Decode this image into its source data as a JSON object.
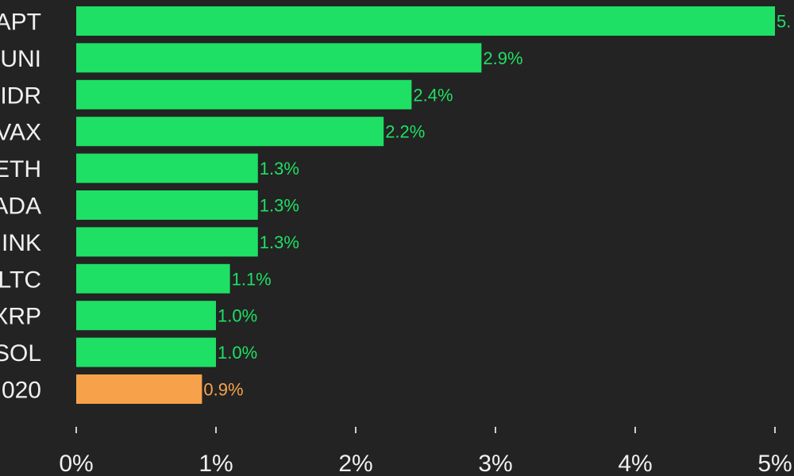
{
  "colors": {
    "background": "#232323",
    "bar_positive": "#1ee064",
    "bar_highlight": "#f7a24b",
    "label_positive": "#1ee064",
    "label_highlight": "#f7a24b",
    "axis_ticks": "#cfcfcf",
    "text": "#f0f0f0"
  },
  "chart_data": {
    "type": "bar",
    "orientation": "horizontal",
    "title": "",
    "xlabel": "",
    "ylabel": "",
    "xlim": [
      0,
      5
    ],
    "grid": false,
    "categories": [
      "APT",
      "UNI",
      "IDR",
      "VAX",
      "ETH",
      "ADA",
      "INK",
      "LTC",
      "XRP",
      "SOL",
      "020"
    ],
    "values": [
      5.0,
      2.9,
      2.4,
      2.2,
      1.3,
      1.3,
      1.3,
      1.1,
      1.0,
      1.0,
      0.9
    ],
    "value_labels": [
      "5.",
      "2.9%",
      "2.4%",
      "2.2%",
      "1.3%",
      "1.3%",
      "1.3%",
      "1.1%",
      "1.0%",
      "1.0%",
      "0.9%"
    ],
    "highlight": [
      false,
      false,
      false,
      false,
      false,
      false,
      false,
      false,
      false,
      false,
      true
    ],
    "x_ticks": [
      0,
      1,
      2,
      3,
      4,
      5
    ],
    "x_tick_labels": [
      "0%",
      "1%",
      "2%",
      "3%",
      "4%",
      "5%"
    ]
  }
}
